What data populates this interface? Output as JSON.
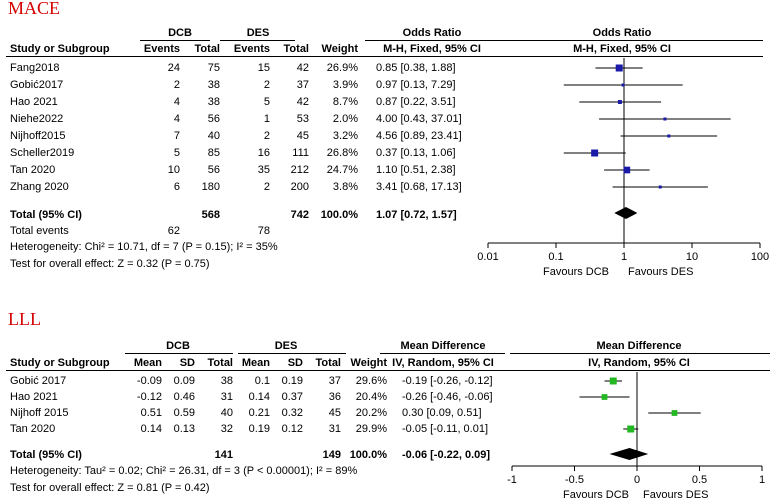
{
  "chart_data": [
    {
      "type": "forest",
      "title": "MACE",
      "group_headers": [
        "DCB",
        "DES"
      ],
      "columns": [
        "Study or Subgroup",
        "Events",
        "Total",
        "Events",
        "Total",
        "Weight"
      ],
      "effect_header": "Odds Ratio",
      "effect_subheader": "M-H, Fixed, 95% CI",
      "plot_header": "Odds Ratio",
      "plot_subheader": "M-H, Fixed, 95% CI",
      "scale": "log",
      "xlim": [
        0.01,
        100
      ],
      "ticks": [
        0.01,
        0.1,
        1,
        10,
        100
      ],
      "tick_labels": [
        "0.01",
        "0.1",
        "1",
        "10",
        "100"
      ],
      "favours_left": "Favours DCB",
      "favours_right": "Favours DES",
      "studies": [
        {
          "name": "Fang2018",
          "c1": "24",
          "c2": "75",
          "c3": "15",
          "c4": "42",
          "weight": "26.9%",
          "ci_text": "0.85 [0.38, 1.88]",
          "est": 0.85,
          "lo": 0.38,
          "hi": 1.88
        },
        {
          "name": "Gobić2017",
          "c1": "2",
          "c2": "38",
          "c3": "2",
          "c4": "37",
          "weight": "3.9%",
          "ci_text": "0.97 [0.13, 7.29]",
          "est": 0.97,
          "lo": 0.13,
          "hi": 7.29
        },
        {
          "name": "Hao 2021",
          "c1": "4",
          "c2": "38",
          "c3": "5",
          "c4": "42",
          "weight": "8.7%",
          "ci_text": "0.87 [0.22, 3.51]",
          "est": 0.87,
          "lo": 0.22,
          "hi": 3.51
        },
        {
          "name": "Niehe2022",
          "c1": "4",
          "c2": "56",
          "c3": "1",
          "c4": "53",
          "weight": "2.0%",
          "ci_text": "4.00 [0.43, 37.01]",
          "est": 4.0,
          "lo": 0.43,
          "hi": 37.01
        },
        {
          "name": "Nijhoff2015",
          "c1": "7",
          "c2": "40",
          "c3": "2",
          "c4": "45",
          "weight": "3.2%",
          "ci_text": "4.56 [0.89, 23.41]",
          "est": 4.56,
          "lo": 0.89,
          "hi": 23.41
        },
        {
          "name": "Scheller2019",
          "c1": "5",
          "c2": "85",
          "c3": "16",
          "c4": "111",
          "weight": "26.8%",
          "ci_text": "0.37 [0.13, 1.06]",
          "est": 0.37,
          "lo": 0.13,
          "hi": 1.06
        },
        {
          "name": "Tan 2020",
          "c1": "10",
          "c2": "56",
          "c3": "35",
          "c4": "212",
          "weight": "24.7%",
          "ci_text": "1.10 [0.51, 2.38]",
          "est": 1.1,
          "lo": 0.51,
          "hi": 2.38
        },
        {
          "name": "Zhang 2020",
          "c1": "6",
          "c2": "180",
          "c3": "2",
          "c4": "200",
          "weight": "3.8%",
          "ci_text": "3.41 [0.68, 17.13]",
          "est": 3.41,
          "lo": 0.68,
          "hi": 17.13
        }
      ],
      "total": {
        "name": "Total (95% CI)",
        "c2": "568",
        "c4": "742",
        "weight": "100.0%",
        "ci_text": "1.07 [0.72, 1.57]",
        "est": 1.07,
        "lo": 0.72,
        "hi": 1.57
      },
      "total_events": {
        "label": "Total events",
        "c1": "62",
        "c3": "78"
      },
      "heterogeneity": "Heterogeneity: Chi² = 10.71, df = 7 (P = 0.15); I² = 35%",
      "overall_effect": "Test for overall effect: Z = 0.32 (P = 0.75)",
      "marker_color": "#1a1aa8"
    },
    {
      "type": "forest",
      "title": "LLL",
      "group_headers": [
        "DCB",
        "DES"
      ],
      "columns": [
        "Study or Subgroup",
        "Mean",
        "SD",
        "Total",
        "Mean",
        "SD",
        "Total",
        "Weight"
      ],
      "effect_header": "Mean Difference",
      "effect_subheader": "IV, Random, 95% CI",
      "plot_header": "Mean Difference",
      "plot_subheader": "IV, Random, 95% CI",
      "scale": "linear",
      "xlim": [
        -1,
        1
      ],
      "ticks": [
        -1,
        -0.5,
        0,
        0.5,
        1
      ],
      "tick_labels": [
        "-1",
        "-0.5",
        "0",
        "0.5",
        "1"
      ],
      "favours_left": "Favours DCB",
      "favours_right": "Favours DES",
      "studies": [
        {
          "name": "Gobić 2017",
          "m1": "-0.09",
          "s1": "0.09",
          "n1": "38",
          "m2": "0.1",
          "s2": "0.19",
          "n2": "37",
          "weight": "29.6%",
          "ci_text": "-0.19 [-0.26, -0.12]",
          "est": -0.19,
          "lo": -0.26,
          "hi": -0.12
        },
        {
          "name": "Hao 2021",
          "m1": "-0.12",
          "s1": "0.46",
          "n1": "31",
          "m2": "0.14",
          "s2": "0.37",
          "n2": "36",
          "weight": "20.4%",
          "ci_text": "-0.26 [-0.46, -0.06]",
          "est": -0.26,
          "lo": -0.46,
          "hi": -0.06
        },
        {
          "name": "Nijhoff 2015",
          "m1": "0.51",
          "s1": "0.59",
          "n1": "40",
          "m2": "0.21",
          "s2": "0.32",
          "n2": "45",
          "weight": "20.2%",
          "ci_text": "0.30 [0.09, 0.51]",
          "est": 0.3,
          "lo": 0.09,
          "hi": 0.51
        },
        {
          "name": "Tan 2020",
          "m1": "0.14",
          "s1": "0.13",
          "n1": "32",
          "m2": "0.19",
          "s2": "0.12",
          "n2": "31",
          "weight": "29.9%",
          "ci_text": "-0.05 [-0.11, 0.01]",
          "est": -0.05,
          "lo": -0.11,
          "hi": 0.01
        }
      ],
      "total": {
        "name": "Total (95% CI)",
        "n1": "141",
        "n2": "149",
        "weight": "100.0%",
        "ci_text": "-0.06 [-0.22, 0.09]",
        "est": -0.06,
        "lo": -0.22,
        "hi": 0.09
      },
      "heterogeneity": "Heterogeneity: Tau² = 0.02; Chi² = 26.31, df = 3 (P < 0.00001); I² = 89%",
      "overall_effect": "Test for overall effect: Z = 0.81 (P = 0.42)",
      "marker_color": "#22b822"
    }
  ]
}
